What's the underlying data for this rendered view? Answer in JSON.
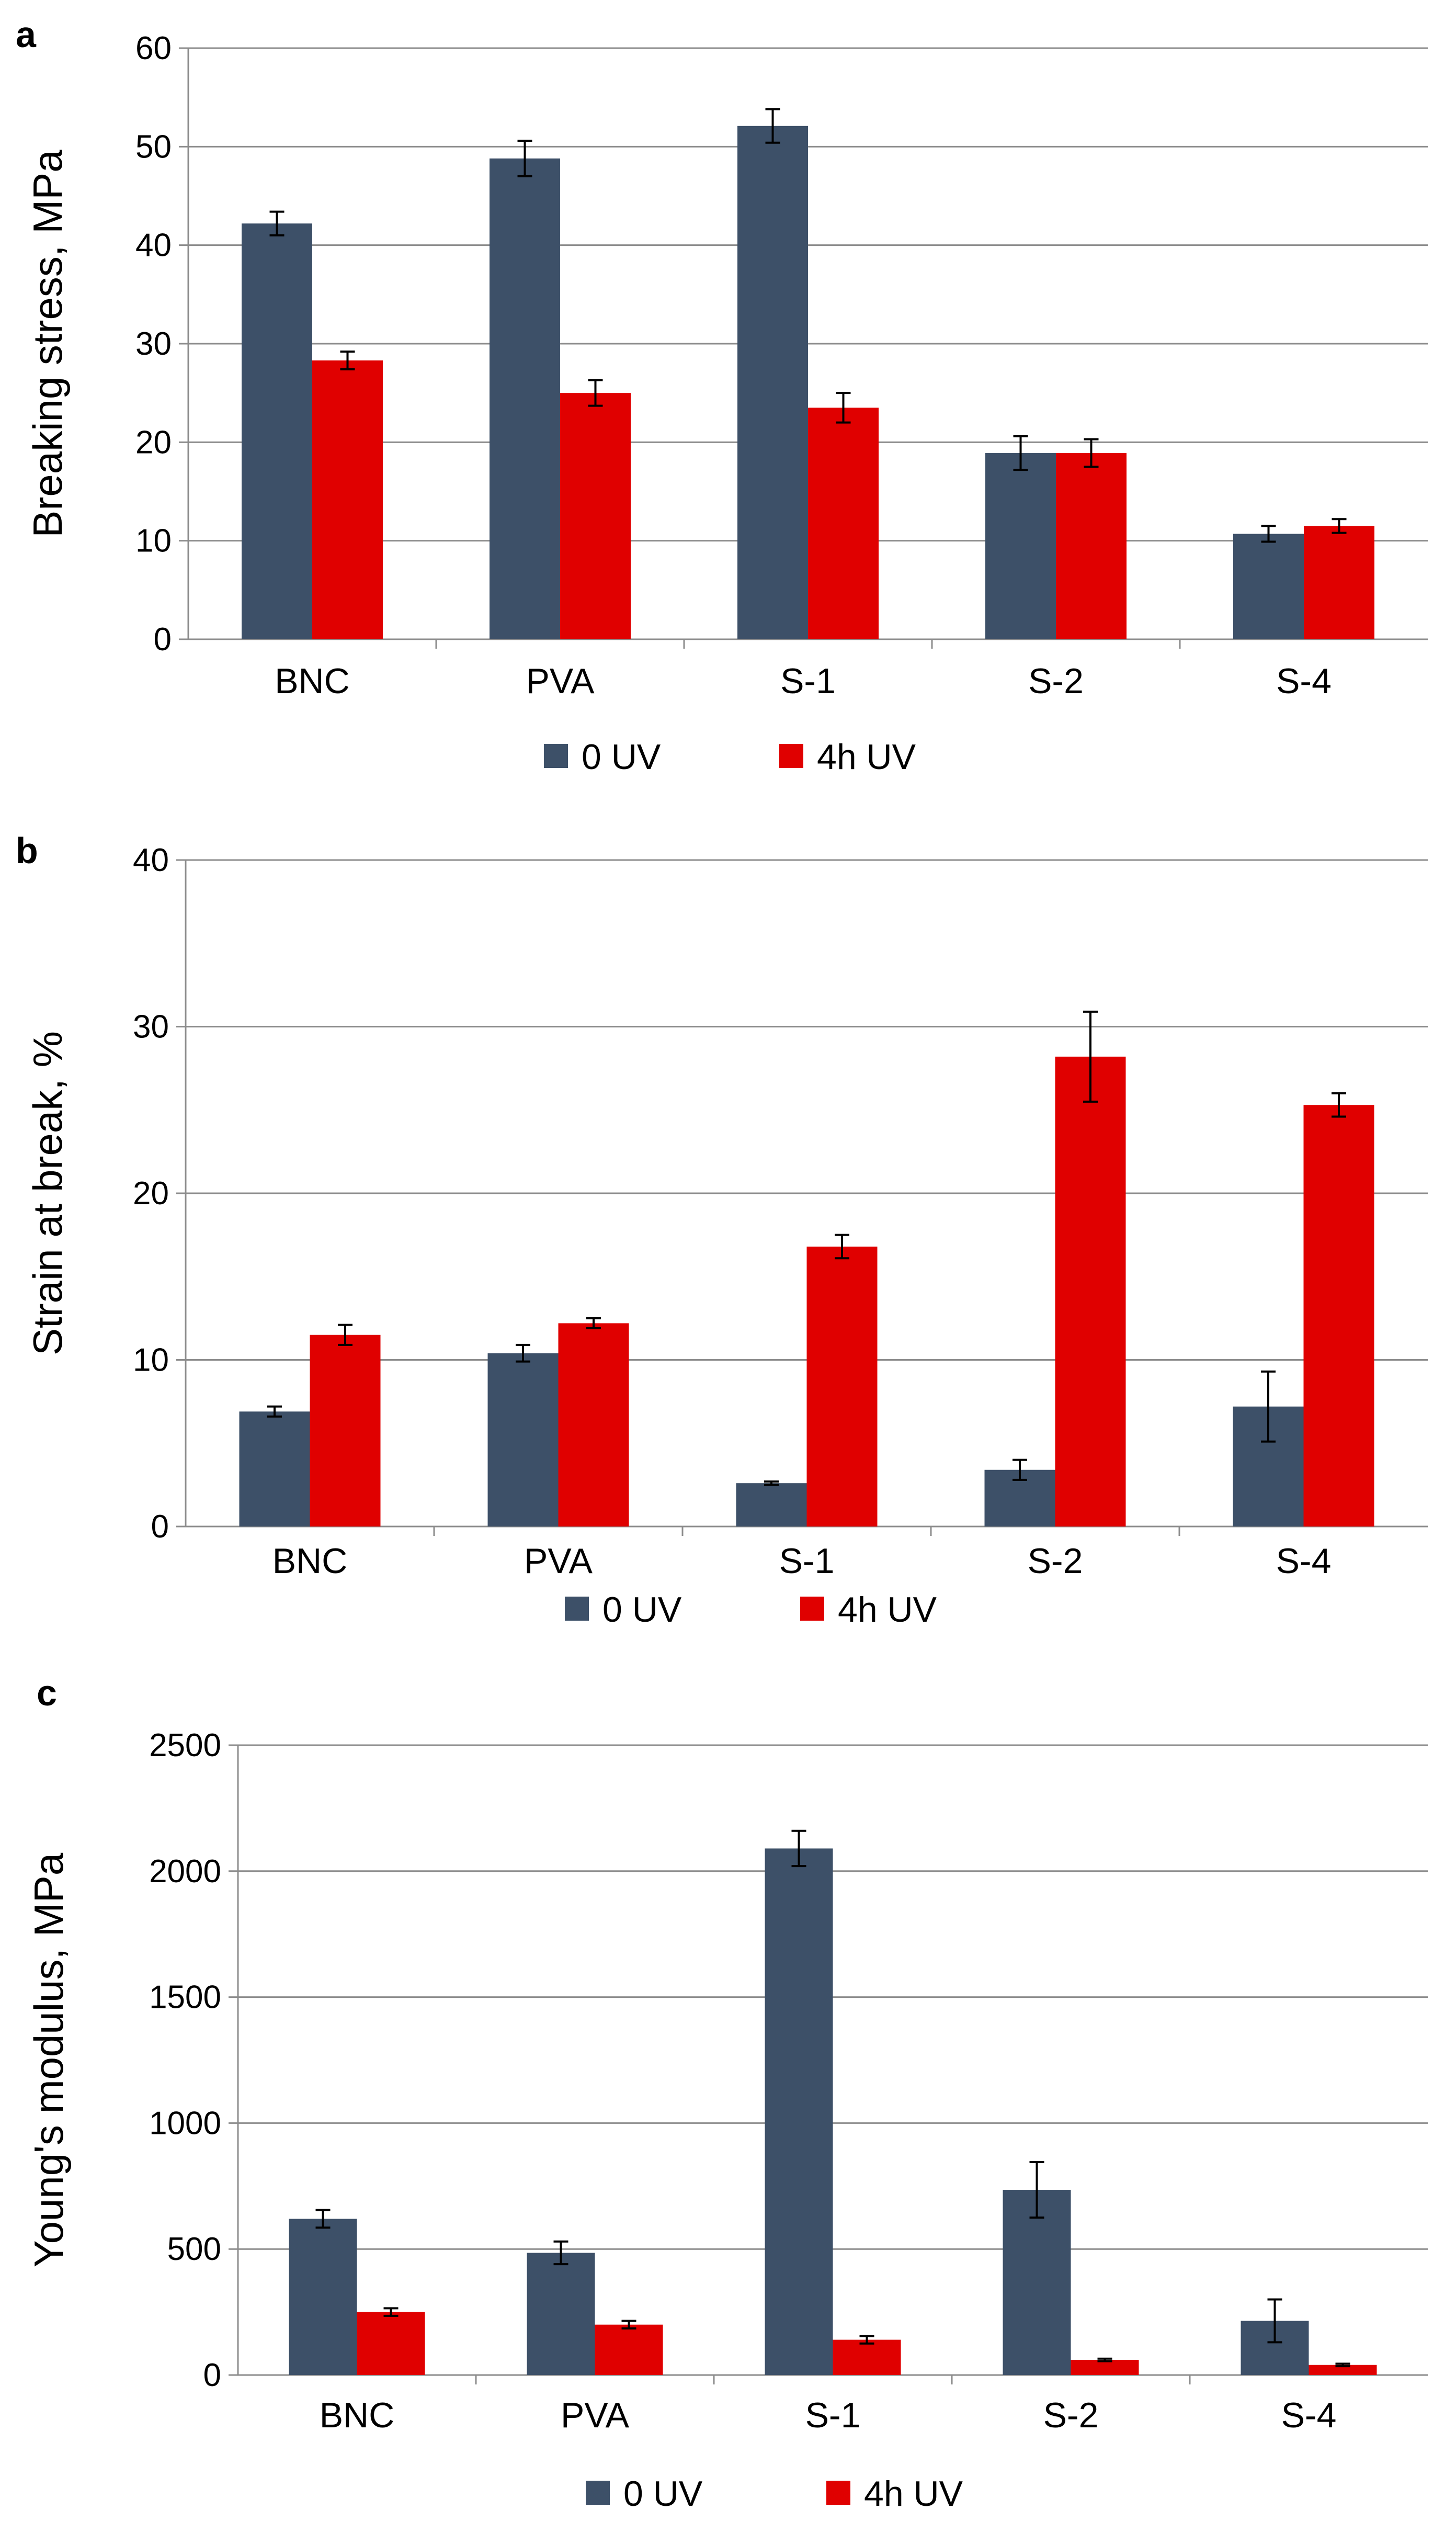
{
  "colors": {
    "uv0": "#3d5068",
    "uv4": "#e00000"
  },
  "chart_data": [
    {
      "type": "bar",
      "panel_label": "a",
      "categories": [
        "BNC",
        "PVA",
        "S-1",
        "S-2",
        "S-4"
      ],
      "ylabel": "Breaking stress, MPa",
      "xlabel": "",
      "ylim": [
        0,
        60
      ],
      "yticks": [
        "0",
        "10",
        "20",
        "30",
        "40",
        "50",
        "60"
      ],
      "grid": true,
      "legend_position": "bottom",
      "series": [
        {
          "name": "0 UV",
          "color": "#3d5068",
          "values": [
            42.2,
            48.8,
            52.1,
            18.9,
            10.7
          ],
          "errors": [
            1.2,
            1.8,
            1.7,
            1.7,
            0.8
          ]
        },
        {
          "name": "4h UV",
          "color": "#e00000",
          "values": [
            28.3,
            25.0,
            23.5,
            18.9,
            11.5
          ],
          "errors": [
            0.9,
            1.3,
            1.5,
            1.4,
            0.7
          ]
        }
      ]
    },
    {
      "type": "bar",
      "panel_label": "b",
      "categories": [
        "BNC",
        "PVA",
        "S-1",
        "S-2",
        "S-4"
      ],
      "ylabel": "Strain at break, %",
      "xlabel": "",
      "ylim": [
        0,
        40
      ],
      "yticks": [
        "0",
        "10",
        "20",
        "30",
        "40"
      ],
      "grid": true,
      "legend_position": "bottom",
      "series": [
        {
          "name": "0 UV",
          "color": "#3d5068",
          "values": [
            6.9,
            10.4,
            2.6,
            3.4,
            7.2
          ],
          "errors": [
            0.3,
            0.5,
            0.1,
            0.6,
            2.1
          ]
        },
        {
          "name": "4h UV",
          "color": "#e00000",
          "values": [
            11.5,
            12.2,
            16.8,
            28.2,
            25.3
          ],
          "errors": [
            0.6,
            0.3,
            0.7,
            2.7,
            0.7
          ]
        }
      ]
    },
    {
      "type": "bar",
      "panel_label": "c",
      "categories": [
        "BNC",
        "PVA",
        "S-1",
        "S-2",
        "S-4"
      ],
      "ylabel": "Young's modulus, MPa",
      "xlabel": "",
      "ylim": [
        0,
        2500
      ],
      "yticks": [
        "0",
        "500",
        "1000",
        "1500",
        "2000",
        "2500"
      ],
      "grid": true,
      "legend_position": "bottom",
      "series": [
        {
          "name": "0 UV",
          "color": "#3d5068",
          "values": [
            620,
            485,
            2090,
            735,
            215
          ],
          "errors": [
            35,
            45,
            70,
            110,
            85
          ]
        },
        {
          "name": "4h UV",
          "color": "#e00000",
          "values": [
            250,
            200,
            140,
            60,
            40
          ],
          "errors": [
            15,
            15,
            15,
            5,
            5
          ]
        }
      ]
    }
  ]
}
